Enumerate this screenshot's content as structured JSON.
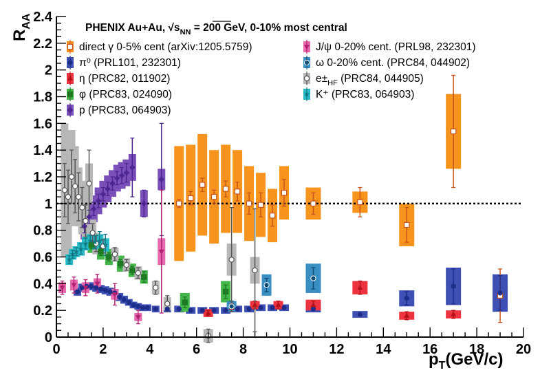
{
  "chart_data": {
    "type": "scatter",
    "title": "PHENIX   Au+Au,  √s",
    "title_sub": "NN",
    "title_rest": " = 200 GeV, 0-10% most central",
    "xlabel": "p",
    "xlabel_sub": "T",
    "xlabel_rest": "(GeV/c)",
    "ylabel": "R",
    "ylabel_sub": "AA",
    "xlim": [
      0,
      20
    ],
    "ylim": [
      0,
      2.4
    ],
    "xticks": [
      "0",
      "2",
      "4",
      "6",
      "8",
      "10",
      "12",
      "14",
      "16",
      "18",
      "20"
    ],
    "yticks": [
      "0",
      "0.2",
      "0.4",
      "0.6",
      "0.8",
      "1",
      "1.2",
      "1.4",
      "1.6",
      "1.8",
      "2",
      "2.2",
      "2.4"
    ],
    "reference_line": 1,
    "grid": false,
    "legend_position": "top",
    "series": [
      {
        "name": "direct γ 0-5% cent (arXiv:1205.5759)",
        "color": "#f7941d",
        "marker": "open-square",
        "marker_color": "#c8541a",
        "points": [
          [
            5.25,
            1.0,
            0.03,
            0.43
          ],
          [
            5.75,
            1.04,
            0.05,
            0.4
          ],
          [
            6.25,
            1.14,
            0.05,
            0.38
          ],
          [
            6.75,
            1.05,
            0.05,
            0.35
          ],
          [
            7.25,
            1.11,
            0.06,
            0.33
          ],
          [
            7.75,
            1.09,
            0.07,
            0.31
          ],
          [
            8.25,
            1.0,
            0.08,
            0.28
          ],
          [
            8.75,
            0.99,
            0.09,
            0.24
          ],
          [
            9.25,
            0.91,
            0.08,
            0.2
          ],
          [
            9.75,
            1.08,
            0.1,
            0.2
          ],
          [
            11.0,
            1.0,
            0.08,
            0.12
          ],
          [
            13.0,
            1.01,
            0.11,
            0.08
          ],
          [
            15.0,
            0.84,
            0.13,
            0.16
          ],
          [
            17.0,
            1.54,
            0.42,
            0.28
          ],
          [
            19.0,
            0.31,
            0.2,
            0.06
          ]
        ]
      },
      {
        "name": "π⁰ (PRL101, 232301)",
        "color": "#3f50b5",
        "marker": "circle",
        "marker_color": "#1f2d8a",
        "points": [
          [
            0.9,
            0.34,
            0.01,
            0.03
          ],
          [
            1.1,
            0.37,
            0.01,
            0.03
          ],
          [
            1.3,
            0.38,
            0.01,
            0.03
          ],
          [
            1.5,
            0.38,
            0.01,
            0.03
          ],
          [
            1.7,
            0.37,
            0.01,
            0.03
          ],
          [
            1.9,
            0.36,
            0.01,
            0.03
          ],
          [
            2.1,
            0.35,
            0.01,
            0.03
          ],
          [
            2.3,
            0.34,
            0.01,
            0.03
          ],
          [
            2.5,
            0.33,
            0.01,
            0.03
          ],
          [
            2.7,
            0.3,
            0.01,
            0.03
          ],
          [
            2.9,
            0.28,
            0.01,
            0.03
          ],
          [
            3.1,
            0.26,
            0.01,
            0.025
          ],
          [
            3.3,
            0.24,
            0.01,
            0.025
          ],
          [
            3.5,
            0.23,
            0.01,
            0.025
          ],
          [
            3.7,
            0.22,
            0.01,
            0.025
          ],
          [
            3.9,
            0.22,
            0.01,
            0.025
          ],
          [
            4.25,
            0.21,
            0.01,
            0.025
          ],
          [
            4.75,
            0.21,
            0.01,
            0.025
          ],
          [
            5.25,
            0.21,
            0.01,
            0.025
          ],
          [
            5.75,
            0.2,
            0.01,
            0.025
          ],
          [
            6.25,
            0.2,
            0.01,
            0.025
          ],
          [
            6.75,
            0.2,
            0.01,
            0.025
          ],
          [
            7.25,
            0.2,
            0.01,
            0.025
          ],
          [
            7.75,
            0.21,
            0.01,
            0.025
          ],
          [
            8.25,
            0.21,
            0.01,
            0.025
          ],
          [
            8.75,
            0.22,
            0.01,
            0.025
          ],
          [
            9.25,
            0.22,
            0.01,
            0.025
          ],
          [
            9.75,
            0.22,
            0.01,
            0.025
          ],
          [
            11.0,
            0.21,
            0.01,
            0.025
          ],
          [
            13.0,
            0.17,
            0.01,
            0.025
          ],
          [
            15.0,
            0.29,
            0.05,
            0.06
          ],
          [
            17.0,
            0.38,
            0.13,
            0.14
          ],
          [
            19.0,
            0.33,
            0.13,
            0.14
          ]
        ]
      },
      {
        "name": "η (PRC82, 011902)",
        "color": "#ee3340",
        "marker": "triangle",
        "marker_color": "#b31218",
        "points": [
          [
            6.5,
            0.18,
            0.02,
            0.03
          ],
          [
            7.5,
            0.22,
            0.03,
            0.03
          ],
          [
            8.5,
            0.24,
            0.03,
            0.03
          ],
          [
            9.5,
            0.24,
            0.03,
            0.03
          ],
          [
            11.0,
            0.24,
            0.03,
            0.04
          ],
          [
            13.0,
            0.37,
            0.05,
            0.05
          ],
          [
            15.0,
            0.16,
            0.03,
            0.03
          ],
          [
            17.0,
            0.17,
            0.03,
            0.03
          ]
        ]
      },
      {
        "name": "φ (PRC83, 024090)",
        "color": "#43b649",
        "marker": "square",
        "marker_color": "#1e7a23",
        "points": [
          [
            1.5,
            0.69,
            0.03,
            0.06
          ],
          [
            1.9,
            0.64,
            0.03,
            0.06
          ],
          [
            2.25,
            0.6,
            0.03,
            0.06
          ],
          [
            2.75,
            0.55,
            0.03,
            0.06
          ],
          [
            3.25,
            0.5,
            0.03,
            0.05
          ],
          [
            3.75,
            0.45,
            0.04,
            0.05
          ],
          [
            5.5,
            0.26,
            0.04,
            0.07
          ],
          [
            7.25,
            0.34,
            0.05,
            0.08
          ]
        ]
      },
      {
        "name": "p (PRC83, 064903)",
        "color": "#7b4fb8",
        "marker": "cross",
        "marker_color": "#4b2690",
        "points": [
          [
            1.2,
            0.83,
            0.05,
            0.1
          ],
          [
            1.4,
            0.9,
            0.05,
            0.1
          ],
          [
            1.6,
            0.96,
            0.05,
            0.1
          ],
          [
            1.8,
            1.02,
            0.05,
            0.1
          ],
          [
            2.0,
            1.07,
            0.05,
            0.1
          ],
          [
            2.2,
            1.11,
            0.05,
            0.1
          ],
          [
            2.4,
            1.15,
            0.05,
            0.1
          ],
          [
            2.6,
            1.19,
            0.05,
            0.1
          ],
          [
            2.8,
            1.21,
            0.06,
            0.1
          ],
          [
            3.0,
            1.23,
            0.07,
            0.1
          ],
          [
            3.25,
            1.27,
            0.22,
            0.1
          ],
          [
            3.75,
            1.0,
            0.1,
            0.1
          ],
          [
            4.5,
            1.18,
            0.42,
            0.08
          ]
        ]
      },
      {
        "name": "J/ψ 0-20% cent. (PRL98, 232301)",
        "color": "#e667ad",
        "marker": "triangle-down",
        "marker_color": "#b2216f",
        "points": [
          [
            0.25,
            0.37,
            0.05,
            0.04
          ],
          [
            0.75,
            0.39,
            0.06,
            0.04
          ],
          [
            1.25,
            0.37,
            0.06,
            0.04
          ],
          [
            1.75,
            0.4,
            0.07,
            0.04
          ],
          [
            2.5,
            0.32,
            0.08,
            0.04
          ],
          [
            3.5,
            0.15,
            0.05,
            0.03
          ],
          [
            4.5,
            0.64,
            0.46,
            0.1
          ]
        ]
      },
      {
        "name": "ω 0-20% cent. (PRC84, 044902)",
        "color": "#3a8fc2",
        "marker": "circle-dot",
        "marker_color": "#0f4d78",
        "points": [
          [
            7.5,
            0.23,
            0.04,
            0.04
          ],
          [
            9.0,
            0.39,
            0.05,
            0.08
          ],
          [
            11.0,
            0.44,
            0.08,
            0.11
          ]
        ]
      },
      {
        "name": "e±",
        "name_sub": "HF",
        "name_rest": " (PRC84, 044905)",
        "color": "#b7b7b7",
        "marker": "open-circle",
        "marker_color": "#555555",
        "points": [
          [
            0.35,
            1.1,
            0.2,
            0.5
          ],
          [
            0.5,
            1.05,
            0.2,
            0.45
          ],
          [
            0.65,
            1.2,
            0.2,
            0.35
          ],
          [
            0.8,
            1.13,
            0.2,
            0.3
          ],
          [
            0.95,
            1.05,
            0.18,
            0.22
          ],
          [
            1.1,
            0.97,
            0.15,
            0.2
          ],
          [
            1.25,
            0.87,
            0.12,
            0.15
          ],
          [
            1.4,
            1.15,
            0.25,
            0.15
          ],
          [
            1.55,
            0.78,
            0.07,
            0.1
          ],
          [
            1.7,
            0.7,
            0.06,
            0.08
          ],
          [
            2.0,
            0.68,
            0.05,
            0.06
          ],
          [
            2.5,
            0.62,
            0.05,
            0.05
          ],
          [
            3.0,
            0.54,
            0.04,
            0.05
          ],
          [
            3.5,
            0.48,
            0.04,
            0.05
          ],
          [
            4.25,
            0.37,
            0.05,
            0.05
          ],
          [
            4.75,
            0.25,
            0.06,
            0.05
          ],
          [
            6.5,
            0.01,
            0.05,
            0.05
          ],
          [
            7.5,
            0.58,
            0.39,
            0.12
          ],
          [
            8.5,
            0.5,
            0.46,
            0.1
          ]
        ]
      },
      {
        "name": "K⁺ (PRC83, 064903)",
        "color": "#27b9c6",
        "marker": "star",
        "marker_color": "#127a85",
        "points": [
          [
            0.55,
            0.58,
            0.03,
            0.04
          ],
          [
            0.7,
            0.62,
            0.03,
            0.04
          ],
          [
            0.85,
            0.64,
            0.03,
            0.04
          ],
          [
            1.05,
            0.66,
            0.04,
            0.05
          ],
          [
            1.25,
            0.7,
            0.04,
            0.05
          ],
          [
            1.45,
            0.72,
            0.04,
            0.05
          ],
          [
            1.65,
            0.71,
            0.05,
            0.05
          ],
          [
            1.85,
            0.72,
            0.07,
            0.05
          ],
          [
            2.1,
            0.69,
            0.08,
            0.05
          ]
        ]
      }
    ]
  }
}
